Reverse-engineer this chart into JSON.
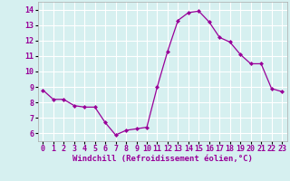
{
  "x": [
    0,
    1,
    2,
    3,
    4,
    5,
    6,
    7,
    8,
    9,
    10,
    11,
    12,
    13,
    14,
    15,
    16,
    17,
    18,
    19,
    20,
    21,
    22,
    23
  ],
  "y": [
    8.8,
    8.2,
    8.2,
    7.8,
    7.7,
    7.7,
    6.7,
    5.9,
    6.2,
    6.3,
    6.4,
    9.0,
    11.3,
    13.3,
    13.8,
    13.9,
    13.2,
    12.2,
    11.9,
    11.1,
    10.5,
    10.5,
    8.9,
    8.7
  ],
  "xlabel": "Windchill (Refroidissement éolien,°C)",
  "xlim": [
    -0.5,
    23.5
  ],
  "ylim": [
    5.5,
    14.5
  ],
  "yticks": [
    6,
    7,
    8,
    9,
    10,
    11,
    12,
    13,
    14
  ],
  "xticks": [
    0,
    1,
    2,
    3,
    4,
    5,
    6,
    7,
    8,
    9,
    10,
    11,
    12,
    13,
    14,
    15,
    16,
    17,
    18,
    19,
    20,
    21,
    22,
    23
  ],
  "line_color": "#990099",
  "marker": "D",
  "marker_size": 2.0,
  "bg_color": "#d6f0f0",
  "grid_color": "#ffffff",
  "xlabel_fontsize": 6.5,
  "tick_fontsize": 6.0,
  "linewidth": 0.9
}
